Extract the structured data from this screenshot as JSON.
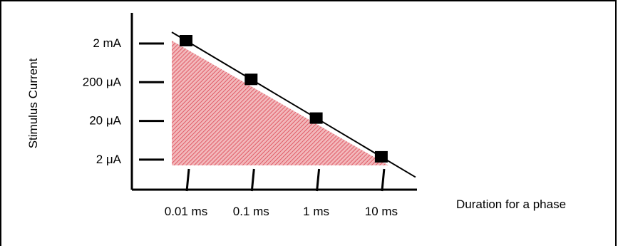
{
  "chart_data": {
    "type": "line",
    "title": "",
    "xlabel": "Duration for a phase",
    "ylabel": "Stimulus Current",
    "x_scale": "log",
    "y_scale": "log",
    "x_ticks": [
      "0.01 ms",
      "0.1 ms",
      "1 ms",
      "10 ms"
    ],
    "y_ticks": [
      "2 mA",
      "200 μA",
      "20 μA",
      "2 μA"
    ],
    "x_values_ms": [
      0.01,
      0.1,
      1,
      10
    ],
    "y_values_uA": [
      2000,
      200,
      20,
      2
    ],
    "series": [
      {
        "values": [
          2000,
          200,
          20,
          2
        ]
      }
    ],
    "shaded_region": "below line",
    "colors": {
      "shade": "#e8747c",
      "line": "#000000",
      "marker": "#000000"
    },
    "grid": false
  }
}
